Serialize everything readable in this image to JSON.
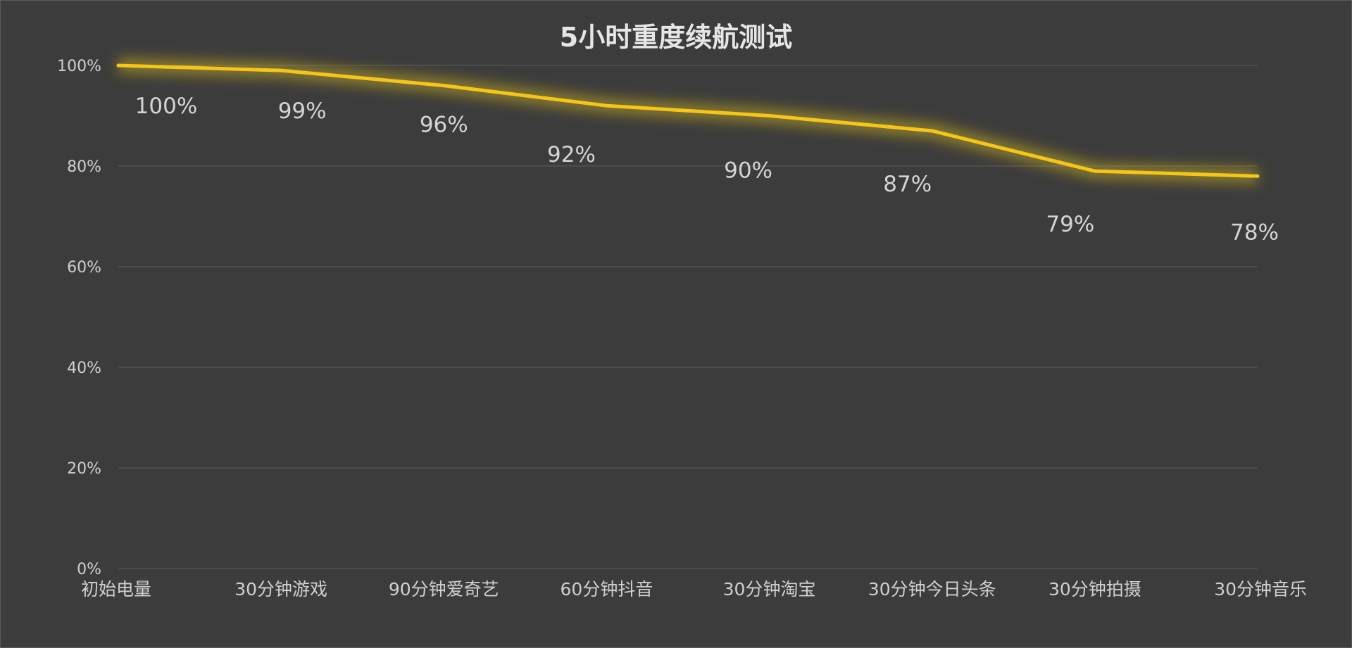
{
  "chart_data": {
    "type": "line",
    "title": "5小时重度续航测试",
    "xlabel": "",
    "ylabel": "",
    "categories": [
      "初始电量",
      "30分钟游戏",
      "90分钟爱奇艺",
      "60分钟抖音",
      "30分钟淘宝",
      "30分钟今日头条",
      "30分钟拍摄",
      "30分钟音乐"
    ],
    "series": [
      {
        "values": [
          100,
          99,
          96,
          92,
          90,
          87,
          79,
          78
        ],
        "data_labels": [
          "100%",
          "99%",
          "96%",
          "92%",
          "90%",
          "87%",
          "79%",
          "78%"
        ],
        "color": "#f5c518"
      }
    ],
    "ylim": [
      0,
      100
    ],
    "yticks": [
      0,
      20,
      40,
      60,
      80,
      100
    ],
    "ytick_labels": [
      "0%",
      "20%",
      "40%",
      "60%",
      "80%",
      "100%"
    ],
    "grid": true,
    "legend": "none",
    "colors": {
      "background": "#3c3c3c",
      "grid": "#555555",
      "line": "#f5c518",
      "glow": "#e8c81a",
      "text": "#d0d0d0"
    }
  }
}
